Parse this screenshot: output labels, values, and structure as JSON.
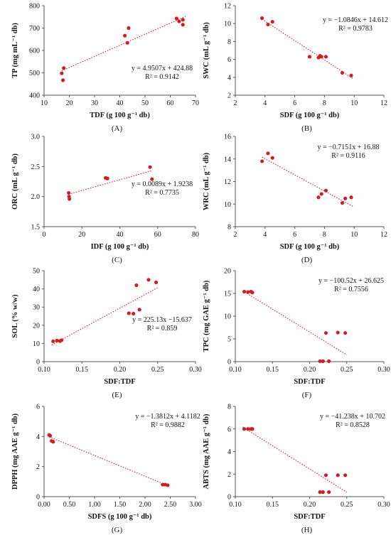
{
  "chart_data": [
    {
      "type": "scatter",
      "panel_label": "(A)",
      "xlabel": "TDF (g 100 g⁻¹ db)",
      "ylabel": "TP (mg mL⁻¹ db)",
      "xlim": [
        10,
        70
      ],
      "ylim": [
        400,
        800
      ],
      "xticks": [
        "10",
        "20",
        "30",
        "40",
        "50",
        "60",
        "70"
      ],
      "yticks": [
        "400",
        "500",
        "600",
        "700",
        "800"
      ],
      "equation": "y = 4.9507x + 424.88",
      "r2": "R² = 0.9142",
      "trend": {
        "slope": 4.9507,
        "intercept": 424.88,
        "x_range": [
          17,
          66
        ]
      },
      "points": [
        [
          17,
          498
        ],
        [
          17.5,
          467
        ],
        [
          17.8,
          521
        ],
        [
          42,
          666
        ],
        [
          43,
          634
        ],
        [
          43.5,
          700
        ],
        [
          62.5,
          743
        ],
        [
          63.5,
          730
        ],
        [
          65,
          715
        ],
        [
          65,
          737
        ]
      ],
      "grid": false
    },
    {
      "type": "scatter",
      "panel_label": "(B)",
      "xlabel": "SDF (g 100 g⁻¹ db)",
      "ylabel": "SWC (mL g⁻¹ db)",
      "xlim": [
        2,
        12
      ],
      "ylim": [
        2,
        12
      ],
      "xticks": [
        "2",
        "4",
        "6",
        "8",
        "10",
        "12"
      ],
      "yticks": [
        "2",
        "4",
        "6",
        "8",
        "10",
        "12"
      ],
      "equation": "y = −1.0846x + 14.612",
      "r2": "R² = 0.9783",
      "trend": {
        "slope": -1.0846,
        "intercept": 14.612,
        "x_range": [
          3.8,
          9.9
        ]
      },
      "points": [
        [
          3.8,
          10.6
        ],
        [
          4.2,
          9.9
        ],
        [
          4.5,
          10.2
        ],
        [
          7.0,
          6.3
        ],
        [
          7.6,
          6.2
        ],
        [
          7.7,
          6.4
        ],
        [
          7.8,
          6.3
        ],
        [
          8.1,
          6.3
        ],
        [
          9.2,
          4.5
        ],
        [
          9.8,
          4.2
        ]
      ],
      "grid": false
    },
    {
      "type": "scatter",
      "panel_label": "(C)",
      "xlabel": "IDF (g 100 g⁻¹ db)",
      "ylabel": "ORC (mL g⁻¹ db)",
      "xlim": [
        0,
        80
      ],
      "ylim": [
        1.5,
        3.0
      ],
      "xticks": [
        "0",
        "20",
        "40",
        "60",
        "80"
      ],
      "yticks": [
        "1.5",
        "2.0",
        "2.5",
        "3.0"
      ],
      "equation": "y = 0.0089x + 1.9238",
      "r2": "R² = 0.7735",
      "trend": {
        "slope": 0.0089,
        "intercept": 1.9238,
        "x_range": [
          13,
          57
        ]
      },
      "points": [
        [
          13,
          2.06
        ],
        [
          13.2,
          2.0
        ],
        [
          13.4,
          1.96
        ],
        [
          32.5,
          2.31
        ],
        [
          33.5,
          2.3
        ],
        [
          56,
          2.49
        ],
        [
          57,
          2.29
        ]
      ],
      "grid": false
    },
    {
      "type": "scatter",
      "panel_label": "(D)",
      "xlabel": "SDF (g 100 g⁻¹ db)",
      "ylabel": "WRC (mL g⁻¹ db)",
      "xlim": [
        2,
        12
      ],
      "ylim": [
        8,
        16
      ],
      "xticks": [
        "2",
        "4",
        "6",
        "8",
        "10",
        "12"
      ],
      "yticks": [
        "8",
        "10",
        "12",
        "14",
        "16"
      ],
      "equation": "y = −0.7151x + 16.88",
      "r2": "R² = 0.9116",
      "trend": {
        "slope": -0.7151,
        "intercept": 16.88,
        "x_range": [
          3.8,
          9.9
        ]
      },
      "points": [
        [
          3.8,
          13.8
        ],
        [
          4.2,
          14.5
        ],
        [
          4.5,
          14.1
        ],
        [
          7.6,
          10.6
        ],
        [
          7.8,
          10.9
        ],
        [
          8.1,
          11.2
        ],
        [
          9.2,
          10.1
        ],
        [
          9.4,
          10.5
        ],
        [
          9.8,
          10.6
        ]
      ],
      "grid": false
    },
    {
      "type": "scatter",
      "panel_label": "(E)",
      "xlabel": "SDF:TDF",
      "ylabel": "SOL (% w/w)",
      "xlim": [
        0.1,
        0.3
      ],
      "ylim": [
        0,
        50
      ],
      "xticks": [
        "0.10",
        "0.15",
        "0.20",
        "0.25",
        "0.30"
      ],
      "yticks": [
        "0",
        "10",
        "20",
        "30",
        "40",
        "50"
      ],
      "equation": "y = 225.13x −15.637",
      "r2": "R² = 0.859",
      "trend": {
        "slope": 225.13,
        "intercept": -15.637,
        "x_range": [
          0.11,
          0.25
        ]
      },
      "points": [
        [
          0.112,
          11.2
        ],
        [
          0.117,
          11.6
        ],
        [
          0.121,
          11.3
        ],
        [
          0.123,
          11.8
        ],
        [
          0.212,
          26.6
        ],
        [
          0.218,
          26.4
        ],
        [
          0.222,
          42.0
        ],
        [
          0.226,
          28.6
        ],
        [
          0.238,
          45.0
        ],
        [
          0.248,
          43.6
        ]
      ],
      "grid": false
    },
    {
      "type": "scatter",
      "panel_label": "(F)",
      "xlabel": "SDF:TDF",
      "ylabel": "TPC (mg GAE g⁻¹ db)",
      "xlim": [
        0.1,
        0.3
      ],
      "ylim": [
        0,
        20
      ],
      "xticks": [
        "0.10",
        "0.15",
        "0.20",
        "0.25",
        "0.30"
      ],
      "yticks": [
        "0",
        "5",
        "10",
        "15",
        "20"
      ],
      "equation": "y = −100.52x + 26.625",
      "r2": "R² = 0.7556",
      "trend": {
        "slope": -100.52,
        "intercept": 26.625,
        "x_range": [
          0.11,
          0.25
        ]
      },
      "points": [
        [
          0.112,
          15.4
        ],
        [
          0.117,
          15.3
        ],
        [
          0.121,
          15.4
        ],
        [
          0.123,
          15.2
        ],
        [
          0.214,
          0.1
        ],
        [
          0.218,
          0.1
        ],
        [
          0.222,
          6.3
        ],
        [
          0.226,
          0.1
        ],
        [
          0.238,
          6.4
        ],
        [
          0.248,
          6.3
        ]
      ],
      "grid": false
    },
    {
      "type": "scatter",
      "panel_label": "(G)",
      "xlabel": "SDFS (g 100 g⁻¹ db)",
      "ylabel": "DPPH (mg AAE g⁻¹ db)",
      "xlim": [
        0,
        3.0
      ],
      "ylim": [
        0,
        6
      ],
      "xticks": [
        "0.00",
        "0.50",
        "1.00",
        "1.50",
        "2.00",
        "2.50",
        "3.00"
      ],
      "yticks": [
        "0",
        "2",
        "4",
        "6"
      ],
      "equation": "y = −1.3812x + 4.1182",
      "r2": "R² = 0.9882",
      "trend": {
        "slope": -1.3812,
        "intercept": 4.1182,
        "x_range": [
          0.1,
          2.45
        ]
      },
      "points": [
        [
          0.1,
          4.1
        ],
        [
          0.12,
          4.05
        ],
        [
          0.15,
          3.7
        ],
        [
          0.18,
          3.65
        ],
        [
          2.35,
          0.8
        ],
        [
          2.4,
          0.8
        ],
        [
          2.45,
          0.76
        ]
      ],
      "grid": false
    },
    {
      "type": "scatter",
      "panel_label": "(H)",
      "xlabel": "SDF:TDF",
      "ylabel": "ABTS (mg AAE g⁻¹ db)",
      "xlim": [
        0.1,
        0.3
      ],
      "ylim": [
        0,
        8
      ],
      "xticks": [
        "0.10",
        "0.15",
        "0.20",
        "0.25",
        "0.30"
      ],
      "yticks": [
        "0",
        "2",
        "4",
        "6",
        "8"
      ],
      "equation": "y = −41.238x + 10.702",
      "r2": "R² = 0.8528",
      "trend": {
        "slope": -41.238,
        "intercept": 10.702,
        "x_range": [
          0.11,
          0.25
        ]
      },
      "points": [
        [
          0.112,
          6.0
        ],
        [
          0.117,
          6.0
        ],
        [
          0.121,
          6.0
        ],
        [
          0.123,
          6.0
        ],
        [
          0.214,
          0.4
        ],
        [
          0.218,
          0.4
        ],
        [
          0.222,
          1.9
        ],
        [
          0.226,
          0.4
        ],
        [
          0.238,
          1.9
        ],
        [
          0.248,
          1.9
        ]
      ],
      "grid": false
    }
  ],
  "colors": {
    "marker": "#cc2027",
    "trendline": "#cc2027",
    "axis": "#555555",
    "text": "#111111"
  }
}
